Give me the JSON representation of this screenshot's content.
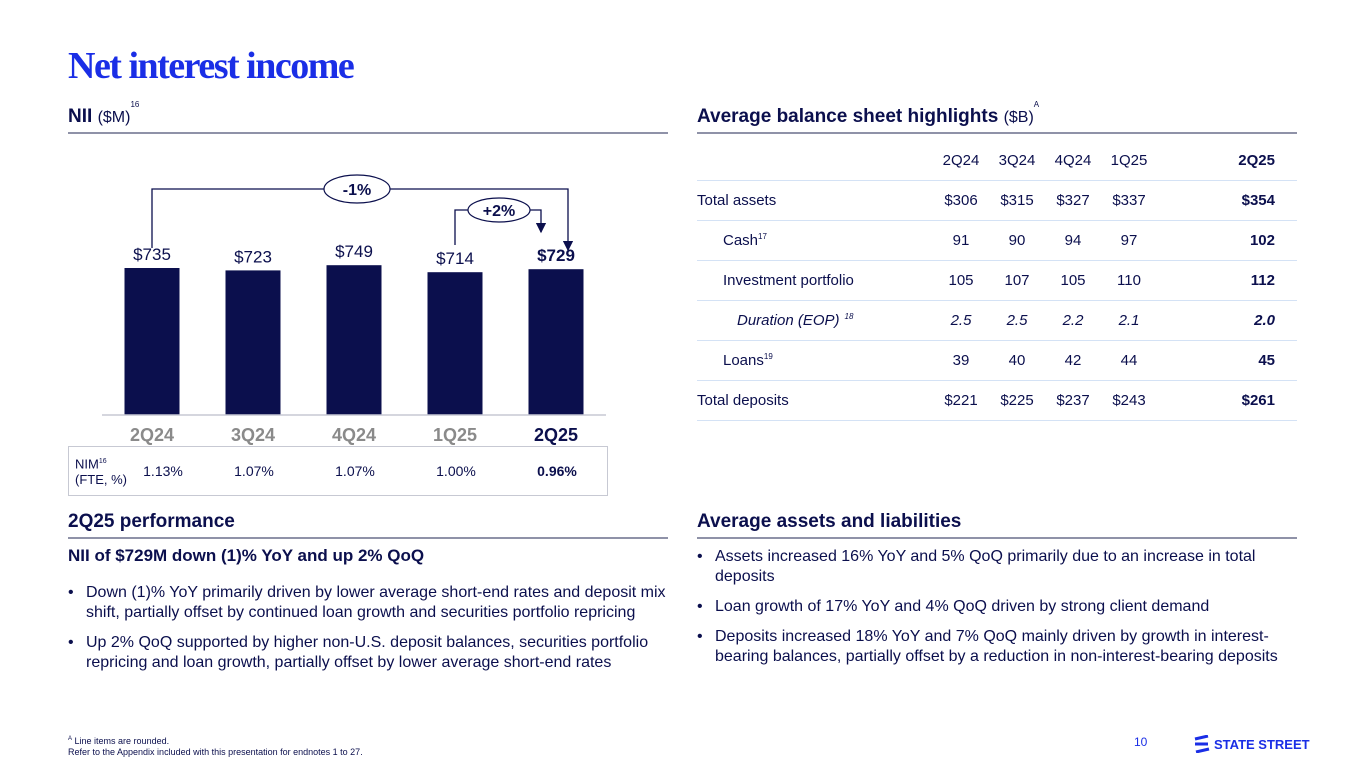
{
  "title": "Net interest income",
  "nii": {
    "label": "NII",
    "unit": "($M)",
    "note": "16",
    "yoy_badge": "-1%",
    "qoq_badge": "+2%"
  },
  "chart_data": {
    "type": "bar",
    "title": "NII ($M)",
    "categories": [
      "2Q24",
      "3Q24",
      "4Q24",
      "1Q25",
      "2Q25"
    ],
    "values": [
      735,
      723,
      749,
      714,
      729
    ],
    "value_labels": [
      "$735",
      "$723",
      "$749",
      "$714",
      "$729"
    ],
    "bar_color": "#0b0f4d",
    "highlight_last": true,
    "annotations": [
      {
        "from": "2Q24",
        "to": "2Q25",
        "text": "-1%"
      },
      {
        "from": "1Q25",
        "to": "2Q25",
        "text": "+2%"
      }
    ]
  },
  "nim": {
    "label": "NIM",
    "note": "16",
    "sublabel": "(FTE, %)",
    "values": [
      "1.13%",
      "1.07%",
      "1.07%",
      "1.00%",
      "0.96%"
    ]
  },
  "balance": {
    "label": "Average balance sheet highlights",
    "unit": "($B)",
    "note": "A",
    "headers": [
      "2Q24",
      "3Q24",
      "4Q24",
      "1Q25",
      "2Q25"
    ],
    "rows": [
      {
        "label": "Total assets",
        "note": "",
        "values": [
          "$306",
          "$315",
          "$327",
          "$337",
          "$354"
        ]
      },
      {
        "label": "Cash",
        "note": "17",
        "values": [
          "91",
          "90",
          "94",
          "97",
          "102"
        ]
      },
      {
        "label": "Investment portfolio",
        "note": "",
        "values": [
          "105",
          "107",
          "105",
          "110",
          "112"
        ]
      },
      {
        "label": "Duration (EOP)",
        "note": "18",
        "values": [
          "2.5",
          "2.5",
          "2.2",
          "2.1",
          "2.0"
        ]
      },
      {
        "label": "Loans",
        "note": "19",
        "values": [
          "39",
          "40",
          "42",
          "44",
          "45"
        ]
      },
      {
        "label": "Total deposits",
        "note": "",
        "values": [
          "$221",
          "$225",
          "$237",
          "$243",
          "$261"
        ]
      }
    ]
  },
  "performance": {
    "label": "2Q25 performance",
    "headline": "NII of $729M down (1)% YoY and up 2% QoQ",
    "bullets": [
      "Down (1)% YoY primarily driven by lower average short-end rates and deposit mix shift, partially offset by continued loan growth and securities portfolio repricing",
      "Up 2% QoQ supported by higher non-U.S. deposit balances, securities portfolio repricing and loan growth, partially offset by lower average short-end rates"
    ]
  },
  "assets": {
    "label": "Average assets and liabilities",
    "bullets": [
      "Assets increased 16% YoY and 5% QoQ primarily due to an increase in total deposits",
      "Loan growth of 17% YoY and 4% QoQ driven by strong client demand",
      "Deposits increased 18% YoY and 7% QoQ mainly driven by growth in interest-bearing balances, partially offset by a reduction in non-interest-bearing deposits"
    ]
  },
  "footer": {
    "note_marker": "A",
    "note1": "Line items are rounded.",
    "note2": "Refer to the Appendix included with this presentation for endnotes 1 to 27.",
    "page": "10",
    "logo": "STATE STREET"
  },
  "colors": {
    "navy": "#0b0f4d",
    "brand_blue": "#1a2ee6",
    "grey_label": "#8a8a8a"
  }
}
